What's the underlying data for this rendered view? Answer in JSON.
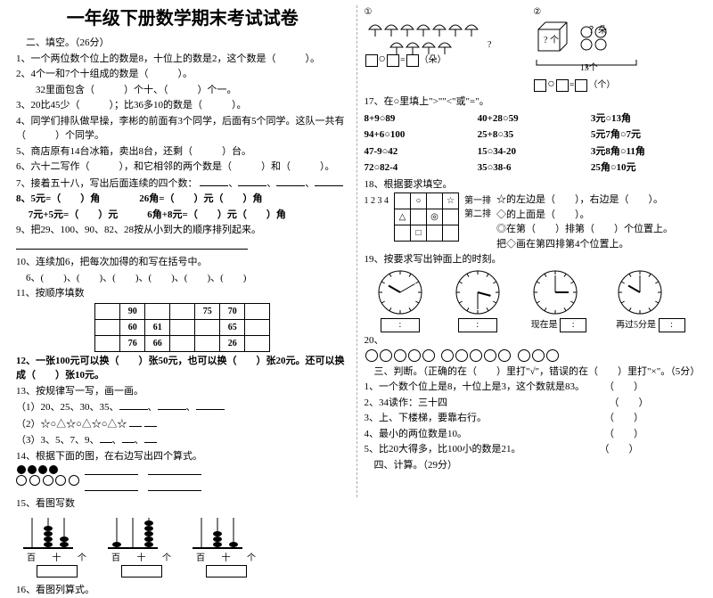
{
  "title": "一年级下册数学期末考试试卷",
  "sec2": "二、填空。（26分）",
  "q1": "1、一个两位数个位上的数是8，十位上的数是2，这个数是（　　　）。",
  "q2": "2、4个一和7个十组成的数是（　　　）。",
  "q2b": "　　32里面包含（　　　）个十、（　　　）个一。",
  "q3": "3、20比45少（　　　）；比36多10的数是（　　　）。",
  "q4": "4、同学们排队做早操，李彬的前面有3个同学，后面有5个同学。这队一共有（　　　）个同学。",
  "q5": "5、商店原有14台冰箱，卖出8台，还剩（　　　）台。",
  "q6": "6、六十二写作（　　　），和它相邻的两个数是（　　　）和（　　　）。",
  "q7": "7、接着五十八，写出后面连续的四个数：",
  "q8a": "8、5元=（　　）角　　　　26角=（　　）元（　　）角",
  "q8b": "　 7元+5元=（　　）元　　　6角+8元=（　　）元（　　）角",
  "q9": "9、把29、100、90、82、28按从小到大的顺序排列起来。",
  "q10": "10、连续加6，把每次加得的和写在括号中。",
  "q10b": "　6、(　　)、(　　)、(　　)、(　　)、(　　)、(　　)",
  "q11": "11、按顺序填数",
  "t11": [
    [
      "",
      "90",
      "",
      "",
      "75",
      "70",
      ""
    ],
    [
      "",
      "60",
      "61",
      "",
      "",
      "65",
      ""
    ],
    [
      "",
      "76",
      "66",
      "",
      "",
      "26",
      ""
    ]
  ],
  "q12": "12、一张100元可以换（　　）张50元，也可以换（　　）张20元。还可以换成（　　）张10元。",
  "q13": "13、按规律写一写，画一画。",
  "q13a": "（1）20、25、30、35、",
  "q13b": "（2）☆○△☆○△☆○△☆",
  "q13c": "（3）3、5、7、9、",
  "q14": "14、根据下面的图，在右边写出四个算式。",
  "q15": "15、看图写数",
  "abacus_labels": "百 十 个",
  "q16": "16、看图列算式。",
  "q17": "17、在○里填上\">\"\"<\"或\"=\"。",
  "cmp": [
    "8+9○89",
    "40+28○59",
    "3元○13角",
    "94+6○100",
    "25+8○35",
    "5元7角○7元",
    "47-9○42",
    "15○34-20",
    "3元8角○11角",
    "72○82-4",
    "35○38-6",
    "25角○10元"
  ],
  "q18": "18、根据要求填空。",
  "q18a": "☆的左边是（　　），右边是（　　）。",
  "q18b": "◇的上面是（　　）。",
  "q18c": "◎在第（　　）排第（　　）个位置上。",
  "q18d": "把◇画在第四排第4个位置上。",
  "row1": "第一排",
  "row2": "第二排",
  "q19": "19、按要求写出钟面上的时刻。",
  "clocks": [
    [
      10,
      2
    ],
    [
      3,
      6
    ],
    [
      3,
      0
    ],
    [
      10,
      0
    ]
  ],
  "nowis": "现在是",
  "after5": "再过5分是",
  "q20": "20、",
  "sec3": "三、判断。（正确的在（　　）里打\"√\"，错误的在（　　）里打\"×\"。（5分）",
  "j1": "1、一个数个位上是8，十位上是3，这个数就是83。　　　（　　）",
  "j2": "2、34读作：三十四　　　　　　　　　　　　　　　　　（　　）",
  "j3": "3、上、下楼梯，要靠右行。　　　　　　　　　　　　　（　　）",
  "j4": "4、最小的两位数是10。　　　　　　　　　　　　　　　（　　）",
  "j5": "5、比20大得多，比100小的数是21。　　　　　　　　　（　　）",
  "sec4": "四、计算。（29分）",
  "duo": "朵",
  "ge": "个",
  "qmark": "？",
  "qduo": "？朵",
  "thirteen": "13个",
  "colon": ":"
}
